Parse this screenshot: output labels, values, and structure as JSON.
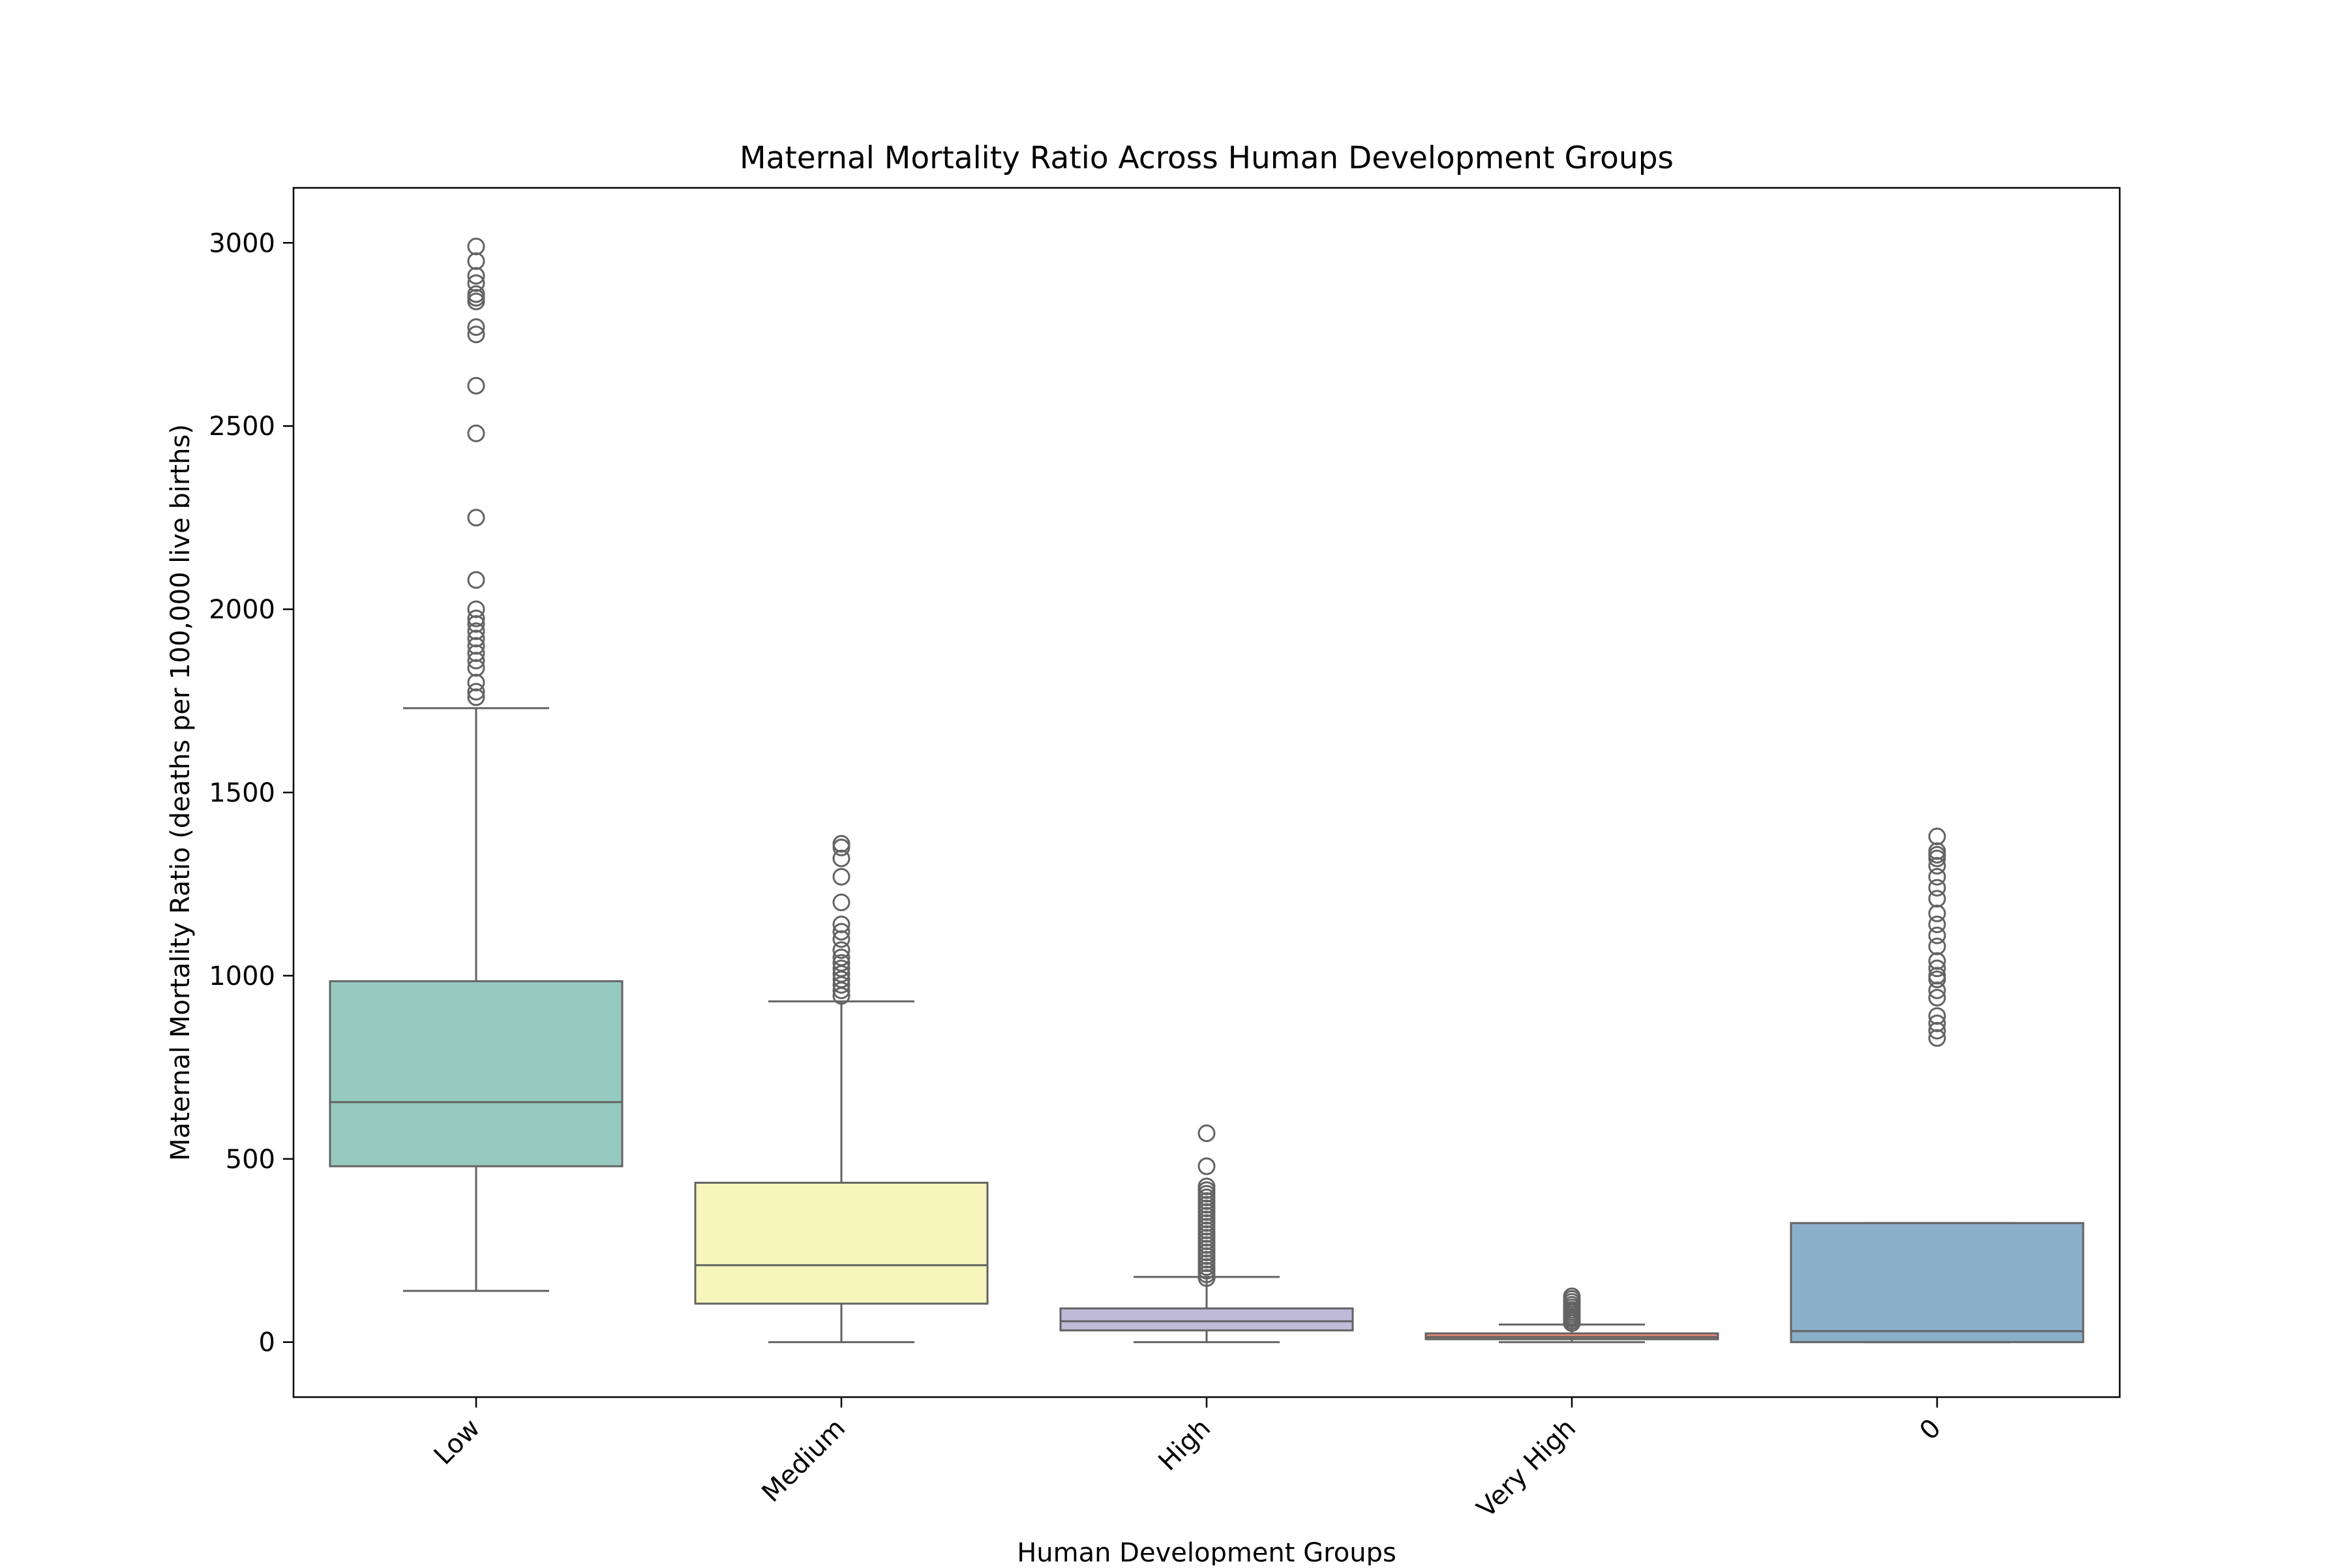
{
  "chart_data": {
    "type": "boxplot",
    "title": "Maternal Mortality Ratio Across Human Development Groups",
    "xlabel": "Human Development Groups",
    "ylabel": "Maternal Mortality Ratio (deaths per 100,000 live births)",
    "ylim": [
      -150,
      3150
    ],
    "yticks": [
      0,
      500,
      1000,
      1500,
      2000,
      2500,
      3000
    ],
    "yticklabels": [
      "0",
      "500",
      "1000",
      "1500",
      "2000",
      "2500",
      "3000"
    ],
    "categories": [
      "Low",
      "Medium",
      "High",
      "Very High",
      "0"
    ],
    "grid": false,
    "legend": "none",
    "boxes": [
      {
        "category": "Low",
        "color": "#96cac1",
        "whisker_low": 140,
        "q1": 480,
        "median": 655,
        "q3": 985,
        "whisker_high": 1730,
        "outliers": [
          1760,
          1775,
          1800,
          1840,
          1860,
          1880,
          1900,
          1920,
          1940,
          1960,
          1975,
          2000,
          2080,
          2250,
          2480,
          2610,
          2750,
          2770,
          2840,
          2850,
          2860,
          2890,
          2910,
          2950,
          2990
        ]
      },
      {
        "category": "Medium",
        "color": "#f6f6bc",
        "whisker_low": 0,
        "q1": 105,
        "median": 210,
        "q3": 435,
        "whisker_high": 930,
        "outliers": [
          945,
          960,
          975,
          990,
          1005,
          1020,
          1035,
          1050,
          1070,
          1100,
          1120,
          1140,
          1200,
          1270,
          1320,
          1350,
          1360
        ]
      },
      {
        "category": "High",
        "color": "#bfbbd9",
        "whisker_low": 0,
        "q1": 32,
        "median": 57,
        "q3": 92,
        "whisker_high": 178,
        "outliers": [
          175,
          185,
          195,
          205,
          215,
          225,
          235,
          245,
          255,
          265,
          275,
          285,
          295,
          305,
          315,
          325,
          335,
          345,
          355,
          365,
          375,
          385,
          395,
          405,
          415,
          425,
          480,
          570
        ]
      },
      {
        "category": "Very High",
        "color": "#e9877b",
        "whisker_low": 0,
        "q1": 8,
        "median": 14,
        "q3": 24,
        "whisker_high": 48,
        "outliers": [
          52,
          58,
          64,
          70,
          76,
          82,
          88,
          95,
          102,
          110,
          118,
          125
        ]
      },
      {
        "category": "0",
        "color": "#8aafc9",
        "whisker_low": 0,
        "q1": 0,
        "median": 30,
        "q3": 325,
        "whisker_high": 325,
        "outliers": [
          830,
          850,
          870,
          890,
          940,
          960,
          990,
          1000,
          1020,
          1040,
          1080,
          1110,
          1140,
          1170,
          1210,
          1240,
          1270,
          1300,
          1320,
          1330,
          1340,
          1380
        ]
      }
    ]
  }
}
